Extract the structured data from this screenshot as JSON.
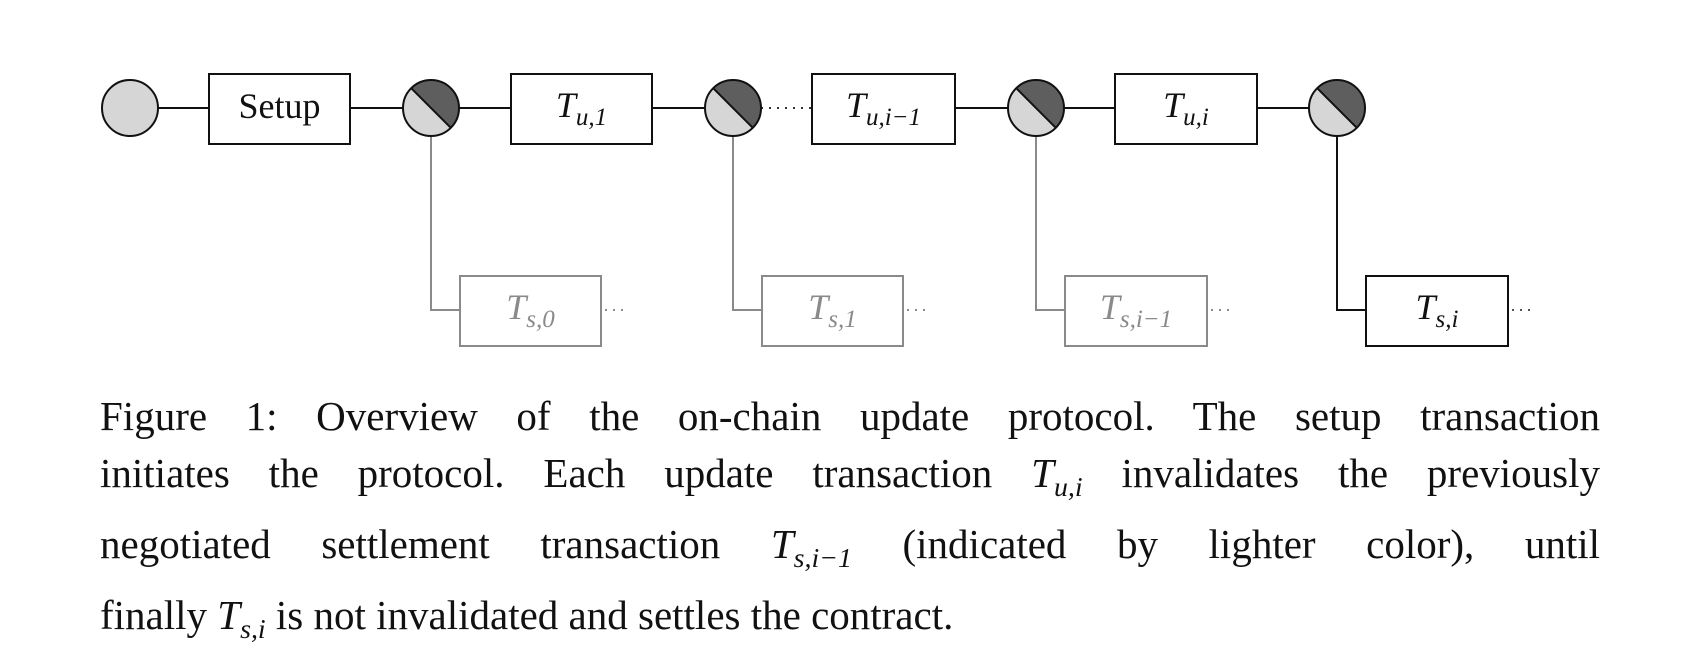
{
  "diagram": {
    "start_node": "start-node",
    "update_nodes": 4,
    "setup_label": "Setup",
    "update_tx": [
      {
        "base": "T",
        "sub": "u,1"
      },
      {
        "base": "T",
        "sub": "u,i−1"
      },
      {
        "base": "T",
        "sub": "u,i"
      }
    ],
    "settlement_tx": [
      {
        "base": "T",
        "sub": "s,0",
        "invalidated": true
      },
      {
        "base": "T",
        "sub": "s,1",
        "invalidated": true
      },
      {
        "base": "T",
        "sub": "s,i−1",
        "invalidated": true
      },
      {
        "base": "T",
        "sub": "s,i",
        "invalidated": false
      }
    ],
    "colors": {
      "node_light": "#d6d6d6",
      "node_dark": "#5e5e5e",
      "active_stroke": "#111111",
      "invalidated_stroke": "#8a8a8a",
      "invalidated_text": "#8a8a8a"
    }
  },
  "caption": {
    "line1": "Figure 1: Overview of the on-chain update protocol. The setup transaction",
    "line2_a": "initiates the protocol. Each update transaction ",
    "line2_math_base": "T",
    "line2_math_sub": "u,i",
    "line2_b": " invalidates the previously",
    "line3_a": "negotiated settlement transaction ",
    "line3_math_base": "T",
    "line3_math_sub": "s,i−1",
    "line3_b": " (indicated by lighter color), until",
    "line4_a": "finally ",
    "line4_math_base": "T",
    "line4_math_sub": "s,i",
    "line4_b": " is not invalidated and settles the contract."
  }
}
